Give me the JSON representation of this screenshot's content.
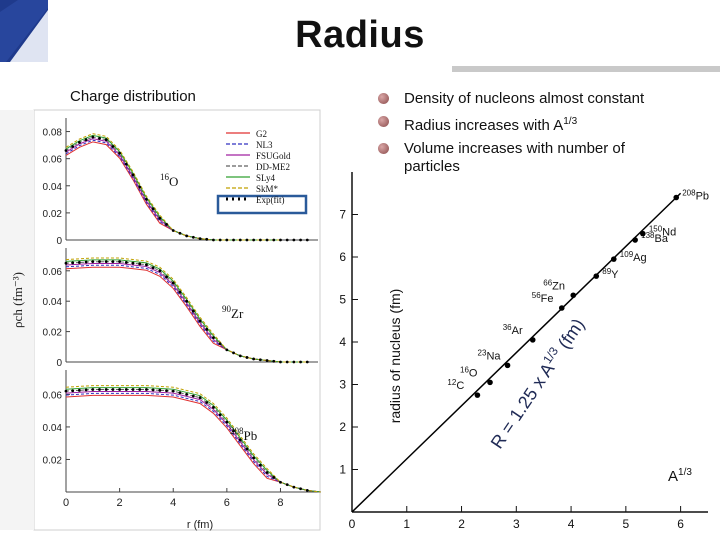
{
  "slide": {
    "title": "Radius",
    "charge_label": "Charge distribution",
    "bullets": [
      {
        "text": "Density of nucleons almost constant"
      },
      {
        "text": "Radius increases with A",
        "sup": "1/3"
      },
      {
        "text": "Volume increases with number of particles"
      }
    ]
  },
  "colors": {
    "logo_blue": "#1f3a8c",
    "rule_gray": "#c9c9c9",
    "fit_line_blue": "#1f3a8c"
  },
  "left_figure": {
    "legend": [
      "G2",
      "NL3",
      "FSUGold",
      "DD-ME2",
      "SLy4",
      "SkM*",
      "Exp(fit)"
    ],
    "legend_colors": [
      "#e03030",
      "#3030c0",
      "#a020a0",
      "#606060",
      "#30a030",
      "#c0a000",
      "#000000"
    ],
    "panels": [
      {
        "label": "16O",
        "mass": "16",
        "sym": "O",
        "yticks": [
          "0.08",
          "0.06",
          "0.04",
          "0.02",
          "0"
        ]
      },
      {
        "label": "90Zr",
        "mass": "90",
        "sym": "Zr",
        "yticks": [
          "0.06",
          "0.04",
          "0.02",
          "0"
        ]
      },
      {
        "label": "208Pb",
        "mass": "208",
        "sym": "Pb",
        "yticks": [
          "0.06",
          "0.04",
          "0.02"
        ]
      }
    ],
    "xticks": [
      "0",
      "2",
      "4",
      "6",
      "8"
    ],
    "xlabel": "r (fm)",
    "ylabel": "ρch (fm⁻³)",
    "series": {
      "O16": {
        "r": [
          0,
          0.5,
          1.0,
          1.5,
          2.0,
          2.5,
          3.0,
          3.5,
          4.0,
          4.5,
          5.0,
          5.5,
          6.0,
          7.0,
          8.0
        ],
        "rho": [
          0.066,
          0.072,
          0.076,
          0.074,
          0.064,
          0.048,
          0.03,
          0.016,
          0.007,
          0.003,
          0.001,
          0,
          0,
          0,
          0
        ]
      },
      "Zr90": {
        "r": [
          0,
          1,
          2,
          3,
          3.5,
          4.0,
          4.5,
          5.0,
          5.5,
          6.0,
          6.5,
          7.0,
          7.5,
          8.0,
          9.0
        ],
        "rho": [
          0.065,
          0.066,
          0.066,
          0.064,
          0.06,
          0.052,
          0.04,
          0.027,
          0.016,
          0.008,
          0.004,
          0.002,
          0.001,
          0,
          0
        ]
      },
      "Pb208": {
        "r": [
          0,
          1,
          2,
          3,
          4,
          5,
          5.5,
          6.0,
          6.5,
          7.0,
          7.5,
          8.0,
          8.5,
          9.0,
          9.5
        ],
        "rho": [
          0.062,
          0.063,
          0.063,
          0.063,
          0.062,
          0.058,
          0.052,
          0.043,
          0.032,
          0.021,
          0.012,
          0.006,
          0.003,
          0.001,
          0
        ]
      }
    }
  },
  "chart_data": {
    "type": "scatter",
    "xlabel": "A1/3",
    "ylabel": "radius of nucleus (fm)",
    "xlim": [
      0,
      6.5
    ],
    "ylim": [
      0,
      8
    ],
    "xticks": [
      "0",
      "1",
      "2",
      "3",
      "4",
      "5",
      "6"
    ],
    "yticks": [
      "1",
      "2",
      "3",
      "4",
      "5",
      "6",
      "7"
    ],
    "points": [
      {
        "mass": "12",
        "sym": "C",
        "x": 2.29,
        "y": 2.75
      },
      {
        "mass": "16",
        "sym": "O",
        "x": 2.52,
        "y": 3.05
      },
      {
        "mass": "23",
        "sym": "Na",
        "x": 2.84,
        "y": 3.45
      },
      {
        "mass": "36",
        "sym": "Ar",
        "x": 3.3,
        "y": 4.05
      },
      {
        "mass": "56",
        "sym": "Fe",
        "x": 3.83,
        "y": 4.8
      },
      {
        "mass": "66",
        "sym": "Zn",
        "x": 4.04,
        "y": 5.1
      },
      {
        "mass": "89",
        "sym": "Y",
        "x": 4.46,
        "y": 5.55
      },
      {
        "mass": "109",
        "sym": "Ag",
        "x": 4.78,
        "y": 5.95
      },
      {
        "mass": "138",
        "sym": "Ba",
        "x": 5.17,
        "y": 6.4
      },
      {
        "mass": "150",
        "sym": "Nd",
        "x": 5.31,
        "y": 6.55
      },
      {
        "mass": "208",
        "sym": "Pb",
        "x": 5.92,
        "y": 7.4
      }
    ],
    "fit": {
      "slope": 1.25,
      "label_prefix": "R = 1.25 x A",
      "label_sup": "1/3",
      "label_suffix": "(fm)"
    }
  }
}
